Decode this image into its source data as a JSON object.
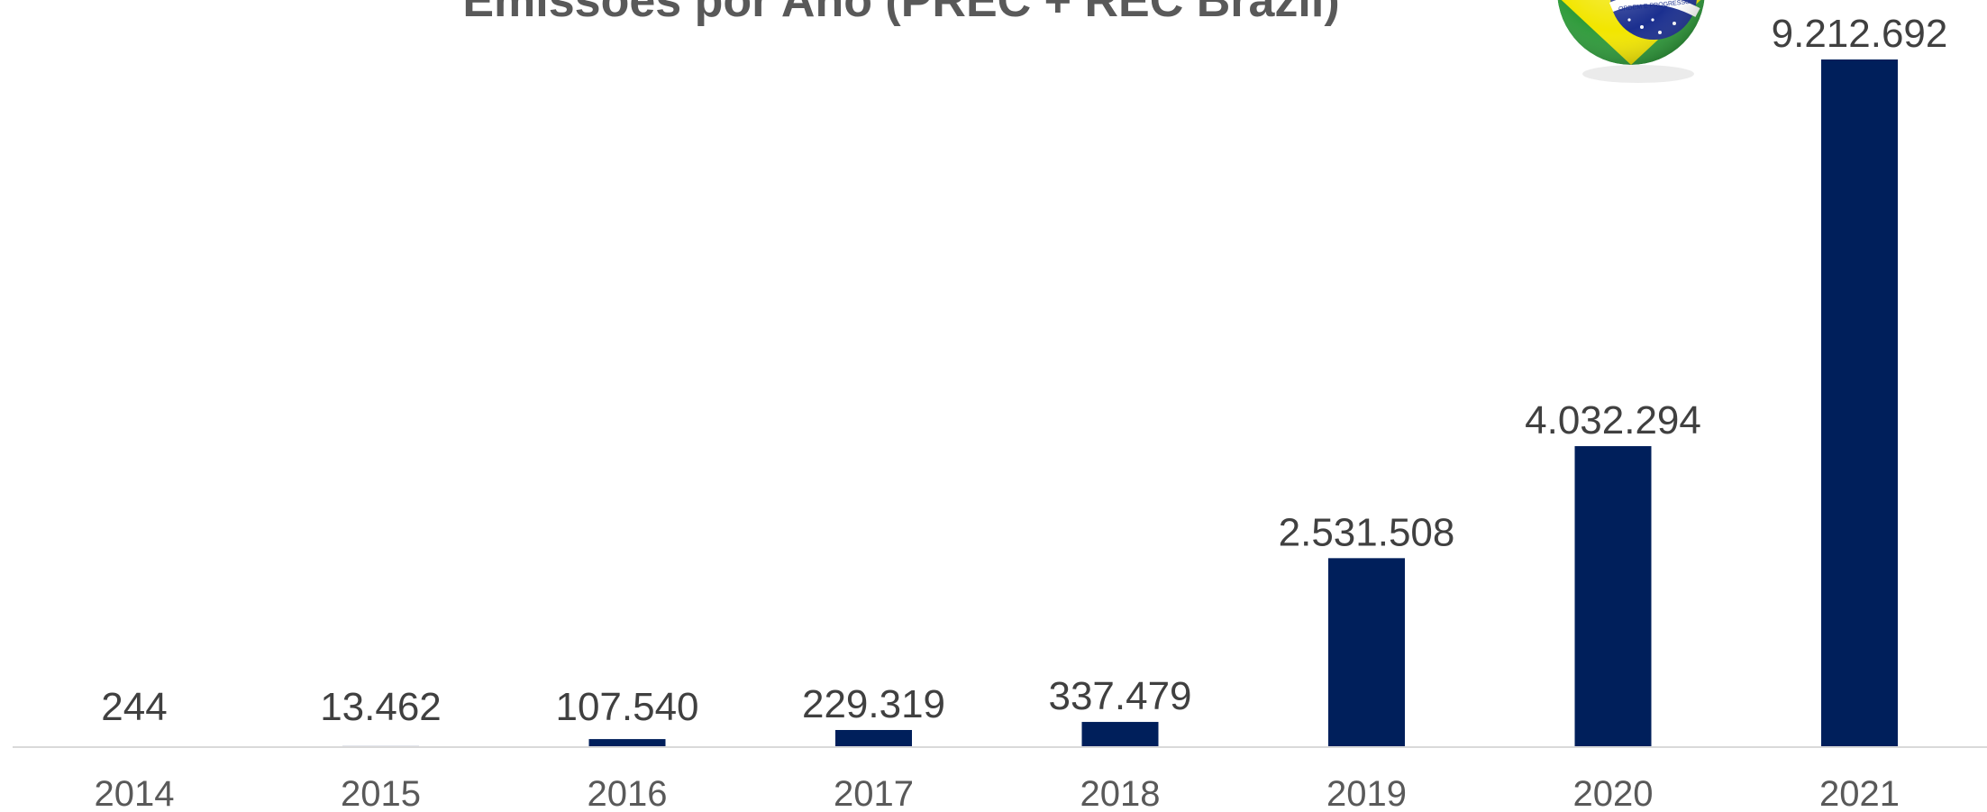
{
  "chart_data": {
    "type": "bar",
    "title": "Emissões por Ano (PREC + REC Brazil)",
    "xlabel": "",
    "ylabel": "",
    "categories": [
      "2014",
      "2015",
      "2016",
      "2017",
      "2018",
      "2019",
      "2020",
      "2021"
    ],
    "values": [
      244,
      13462,
      107540,
      229319,
      337479,
      2531508,
      4032294,
      9212692
    ],
    "value_labels": [
      "244",
      "13.462",
      "107.540",
      "229.319",
      "337.479",
      "2.531.508",
      "4.032.294",
      "9.212.692"
    ],
    "ylim": [
      0,
      9212692
    ],
    "grid": false,
    "legend": "none",
    "colors": {
      "bar": "#001f5b",
      "axis": "#d9d9d9",
      "title": "#595959",
      "value_label": "#404040",
      "tick_label": "#595959",
      "flag_green": "#2e9b3a",
      "flag_yellow": "#f2e600",
      "flag_blue": "#1b2f8f"
    },
    "logo": {
      "icon": "brazil-flag-ball-icon",
      "text": "ORDEM E PROGRESSO"
    }
  }
}
